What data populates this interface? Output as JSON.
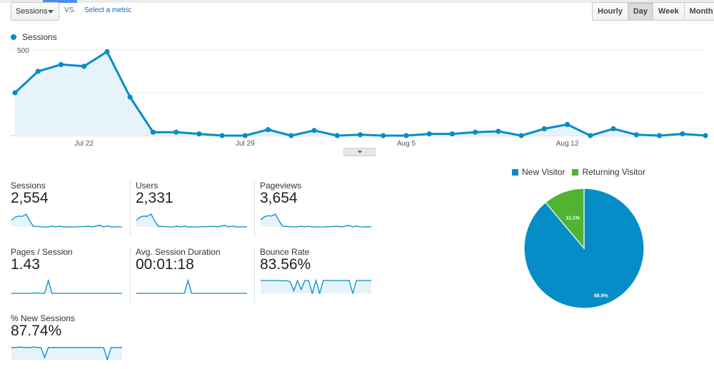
{
  "toolbar": {
    "metric_select": "Sessions",
    "vs_label": "VS.",
    "select_metric_link": "Select a metric",
    "ranges": [
      "Hourly",
      "Day",
      "Week",
      "Month"
    ],
    "active_range": "Day"
  },
  "chart_data": [
    {
      "type": "area",
      "series": [
        {
          "name": "Sessions",
          "values": [
            250,
            375,
            415,
            405,
            490,
            225,
            20,
            20,
            10,
            0,
            0,
            35,
            0,
            30,
            0,
            5,
            0,
            0,
            10,
            10,
            20,
            25,
            0,
            40,
            65,
            0,
            40,
            5,
            0,
            10,
            0
          ]
        }
      ],
      "x_ticks": [
        {
          "index": 3,
          "label": "Jul 22"
        },
        {
          "index": 10,
          "label": "Jul 29"
        },
        {
          "index": 17,
          "label": "Aug 5"
        },
        {
          "index": 24,
          "label": "Aug 12"
        }
      ],
      "y_ticks": [
        "500",
        "250"
      ],
      "ylim": [
        0,
        500
      ],
      "color": "#058dc7",
      "fill": "#e6f3fa"
    },
    {
      "type": "pie",
      "slices": [
        {
          "name": "New Visitor",
          "value": 88.9,
          "label": "88.9%",
          "color": "#058dc7"
        },
        {
          "name": "Returning Visitor",
          "value": 11.1,
          "label": "11.1%",
          "color": "#50b432"
        }
      ]
    }
  ],
  "tiles": [
    {
      "label": "Sessions",
      "value": "2,554",
      "spark": [
        250,
        375,
        415,
        405,
        490,
        225,
        20,
        20,
        10,
        0,
        0,
        35,
        0,
        30,
        0,
        5,
        0,
        0,
        10,
        10,
        20,
        25,
        0,
        40,
        65,
        0,
        40,
        5,
        0,
        10,
        0
      ]
    },
    {
      "label": "Users",
      "value": "2,331",
      "spark": [
        240,
        360,
        400,
        390,
        470,
        210,
        18,
        18,
        9,
        0,
        0,
        32,
        0,
        28,
        0,
        5,
        0,
        0,
        9,
        9,
        18,
        22,
        0,
        36,
        60,
        0,
        36,
        5,
        0,
        9,
        0
      ]
    },
    {
      "label": "Pageviews",
      "value": "3,654",
      "spark": [
        260,
        380,
        420,
        410,
        480,
        230,
        25,
        22,
        12,
        2,
        2,
        30,
        2,
        28,
        2,
        6,
        2,
        2,
        10,
        12,
        20,
        24,
        2,
        38,
        60,
        2,
        38,
        6,
        2,
        10,
        2
      ]
    },
    {
      "label": "Pages / Session",
      "value": "1.43",
      "spark": [
        1.2,
        1.2,
        1.2,
        1.2,
        1.2,
        1.2,
        1.25,
        1.25,
        1.2,
        1.2,
        3.2,
        1.2,
        1.2,
        1.2,
        1.2,
        1.2,
        1.2,
        1.2,
        1.2,
        1.2,
        1.2,
        1.2,
        1.2,
        1.2,
        1.2,
        1.2,
        1.2,
        1.2,
        1.2,
        1.2,
        1.2
      ]
    },
    {
      "label": "Avg. Session Duration",
      "value": "00:01:18",
      "spark": [
        40,
        40,
        40,
        40,
        40,
        40,
        40,
        40,
        40,
        40,
        40,
        40,
        40,
        40,
        500,
        40,
        40,
        40,
        40,
        40,
        40,
        40,
        40,
        40,
        40,
        40,
        40,
        40,
        40,
        40,
        40
      ]
    },
    {
      "label": "Bounce Rate",
      "value": "83.56%",
      "spark": [
        80,
        80,
        80,
        80,
        80,
        80,
        78,
        80,
        75,
        40,
        80,
        45,
        80,
        80,
        30,
        80,
        30,
        80,
        80,
        80,
        80,
        80,
        80,
        80,
        80,
        30,
        80,
        80,
        80,
        80,
        80
      ]
    },
    {
      "label": "% New Sessions",
      "value": "87.74%",
      "spark": [
        85,
        85,
        87,
        86,
        85,
        85,
        88,
        85,
        85,
        40,
        85,
        85,
        85,
        85,
        85,
        85,
        85,
        85,
        85,
        85,
        85,
        85,
        85,
        85,
        85,
        85,
        30,
        85,
        85,
        85,
        85
      ]
    }
  ]
}
